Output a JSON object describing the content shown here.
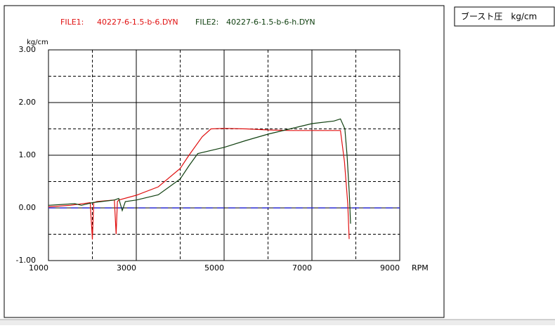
{
  "chart_data": {
    "type": "line",
    "panel_title": "ブースト圧　kg/cm",
    "y_label": "kg/cm",
    "x_label": "RPM",
    "x_scale": "linear",
    "xlim": [
      1000,
      9000
    ],
    "xticks": [
      1000,
      3000,
      5000,
      7000,
      9000
    ],
    "xgrid_dashed": [
      2000,
      4000,
      6000,
      8000
    ],
    "ylim": [
      -1,
      3
    ],
    "yticks": [
      {
        "value": -1,
        "label": "-1.00"
      },
      {
        "value": 0,
        "label": "0.00"
      },
      {
        "value": 1,
        "label": "1.00"
      },
      {
        "value": 2,
        "label": "2.00"
      },
      {
        "value": 3,
        "label": "3.00"
      }
    ],
    "ygrid_dashed": [
      -0.5,
      0.5,
      1.5,
      2.5
    ],
    "grid": true,
    "reference_line": {
      "value": 0,
      "color": "#2a2ad0"
    },
    "series": [
      {
        "file": "FILE1:",
        "name": "40227-6-1.5-b-6.DYN",
        "color": "#e01010",
        "x": [
          1000,
          1500,
          1950,
          2000,
          2030,
          2100,
          2500,
          2540,
          2570,
          2600,
          3000,
          3500,
          4000,
          4200,
          4500,
          4700,
          5000,
          5500,
          6000,
          6500,
          7000,
          7500,
          7650,
          7740,
          7816,
          7848
        ],
        "values": [
          0.02,
          0.05,
          0.1,
          -0.6,
          0.1,
          0.12,
          0.15,
          -0.5,
          0.12,
          0.15,
          0.24,
          0.4,
          0.75,
          1.0,
          1.35,
          1.5,
          1.51,
          1.5,
          1.48,
          1.47,
          1.47,
          1.47,
          1.47,
          0.88,
          0.08,
          -0.59
        ]
      },
      {
        "file": "FILE2:",
        "name": "40227-6-1.5-b-6-h.DYN",
        "color": "#104010",
        "x": [
          1000,
          1600,
          1750,
          2000,
          2500,
          2600,
          2680,
          2750,
          3000,
          3500,
          4000,
          4200,
          4400,
          5000,
          5500,
          6000,
          6500,
          7000,
          7500,
          7650,
          7750,
          7800,
          7850,
          7880
        ],
        "values": [
          0.05,
          0.08,
          0.05,
          0.1,
          0.15,
          0.18,
          -0.05,
          0.12,
          0.15,
          0.25,
          0.55,
          0.8,
          1.03,
          1.15,
          1.28,
          1.4,
          1.5,
          1.6,
          1.65,
          1.69,
          1.5,
          1.0,
          0.3,
          -0.3
        ]
      }
    ]
  }
}
